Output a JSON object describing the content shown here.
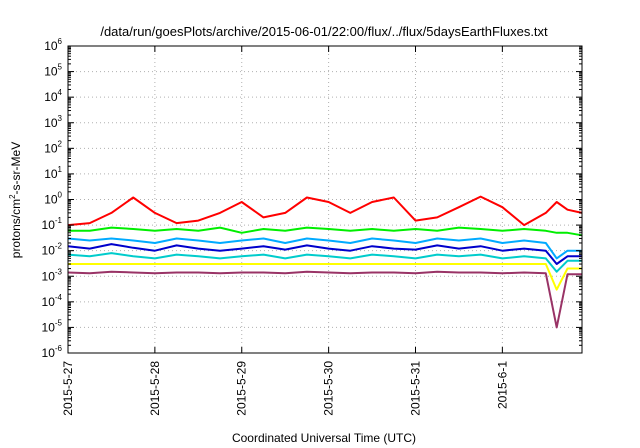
{
  "chart_data": {
    "type": "line",
    "title": "/data/run/goesPlots/archive/2015-06-01/22:00/flux/../flux/5daysEarthFluxes.txt",
    "xlabel": "Coordinated Universal Time (UTC)",
    "ylabel_main": "protons/cm",
    "ylabel_sup": "2",
    "ylabel_tail": "-s-sr-MeV",
    "y_scale": "log",
    "ylim": [
      1e-06,
      1000000.0
    ],
    "y_ticks": [
      {
        "value": 1e-06,
        "base": "10",
        "exp": "-6"
      },
      {
        "value": 1e-05,
        "base": "10",
        "exp": "-5"
      },
      {
        "value": 0.0001,
        "base": "10",
        "exp": "-4"
      },
      {
        "value": 0.001,
        "base": "10",
        "exp": "-3"
      },
      {
        "value": 0.01,
        "base": "10",
        "exp": "-2"
      },
      {
        "value": 0.1,
        "base": "10",
        "exp": "-1"
      },
      {
        "value": 1.0,
        "base": "10",
        "exp": "0"
      },
      {
        "value": 10.0,
        "base": "10",
        "exp": "1"
      },
      {
        "value": 100.0,
        "base": "10",
        "exp": "2"
      },
      {
        "value": 1000.0,
        "base": "10",
        "exp": "3"
      },
      {
        "value": 10000.0,
        "base": "10",
        "exp": "4"
      },
      {
        "value": 100000.0,
        "base": "10",
        "exp": "5"
      },
      {
        "value": 1000000.0,
        "base": "10",
        "exp": "6"
      }
    ],
    "xlim": [
      "2015-05-27 00:00",
      "2015-06-01 22:00"
    ],
    "x_ticks": [
      {
        "value": "2015-05-27 00:00",
        "label": "2015-5-27"
      },
      {
        "value": "2015-05-28 00:00",
        "label": "2015-5-28"
      },
      {
        "value": "2015-05-29 00:00",
        "label": "2015-5-29"
      },
      {
        "value": "2015-05-30 00:00",
        "label": "2015-5-30"
      },
      {
        "value": "2015-05-31 00:00",
        "label": "2015-5-31"
      },
      {
        "value": "2015-06-01 00:00",
        "label": "2015-6-1"
      }
    ],
    "grid": true,
    "legend": "none",
    "x": [
      "2015-05-27 00:00",
      "2015-05-27 06:00",
      "2015-05-27 12:00",
      "2015-05-27 18:00",
      "2015-05-28 00:00",
      "2015-05-28 06:00",
      "2015-05-28 12:00",
      "2015-05-28 18:00",
      "2015-05-29 00:00",
      "2015-05-29 06:00",
      "2015-05-29 12:00",
      "2015-05-29 18:00",
      "2015-05-30 00:00",
      "2015-05-30 06:00",
      "2015-05-30 12:00",
      "2015-05-30 18:00",
      "2015-05-31 00:00",
      "2015-05-31 06:00",
      "2015-05-31 12:00",
      "2015-05-31 18:00",
      "2015-06-01 00:00",
      "2015-06-01 06:00",
      "2015-06-01 12:00",
      "2015-06-01 15:00",
      "2015-06-01 18:00",
      "2015-06-01 22:00"
    ],
    "series": [
      {
        "color": "#ff0000",
        "values": [
          0.1,
          0.12,
          0.3,
          1.2,
          0.3,
          0.12,
          0.15,
          0.3,
          0.8,
          0.2,
          0.3,
          1.2,
          0.8,
          0.3,
          0.8,
          1.2,
          0.15,
          0.2,
          0.5,
          1.3,
          0.5,
          0.1,
          0.3,
          0.8,
          0.4,
          0.3
        ]
      },
      {
        "color": "#00ee00",
        "values": [
          0.06,
          0.06,
          0.08,
          0.07,
          0.06,
          0.07,
          0.06,
          0.08,
          0.05,
          0.07,
          0.06,
          0.08,
          0.07,
          0.06,
          0.07,
          0.06,
          0.07,
          0.06,
          0.08,
          0.07,
          0.06,
          0.07,
          0.06,
          0.05,
          0.05,
          0.04
        ]
      },
      {
        "color": "#00aaff",
        "values": [
          0.03,
          0.025,
          0.03,
          0.025,
          0.02,
          0.03,
          0.025,
          0.02,
          0.025,
          0.03,
          0.02,
          0.03,
          0.025,
          0.02,
          0.03,
          0.025,
          0.02,
          0.03,
          0.025,
          0.03,
          0.02,
          0.025,
          0.02,
          0.005,
          0.01,
          0.01
        ]
      },
      {
        "color": "#0000cc",
        "values": [
          0.015,
          0.012,
          0.018,
          0.013,
          0.01,
          0.016,
          0.012,
          0.01,
          0.012,
          0.015,
          0.011,
          0.016,
          0.012,
          0.01,
          0.015,
          0.012,
          0.011,
          0.016,
          0.012,
          0.015,
          0.01,
          0.012,
          0.01,
          0.003,
          0.006,
          0.006
        ]
      },
      {
        "color": "#00cccc",
        "values": [
          0.007,
          0.006,
          0.008,
          0.006,
          0.005,
          0.007,
          0.006,
          0.005,
          0.006,
          0.007,
          0.005,
          0.007,
          0.006,
          0.005,
          0.007,
          0.006,
          0.005,
          0.007,
          0.006,
          0.007,
          0.005,
          0.006,
          0.005,
          0.0015,
          0.004,
          0.004
        ]
      },
      {
        "color": "#ffff00",
        "values": [
          0.003,
          0.003,
          0.003,
          0.003,
          0.003,
          0.003,
          0.003,
          0.003,
          0.003,
          0.003,
          0.003,
          0.003,
          0.003,
          0.003,
          0.003,
          0.003,
          0.003,
          0.003,
          0.003,
          0.003,
          0.003,
          0.003,
          0.003,
          0.0003,
          0.002,
          0.002
        ]
      },
      {
        "color": "#993366",
        "values": [
          0.0014,
          0.0013,
          0.0015,
          0.0014,
          0.0013,
          0.0014,
          0.0014,
          0.0013,
          0.0014,
          0.0014,
          0.0013,
          0.0015,
          0.0014,
          0.0013,
          0.0014,
          0.0014,
          0.0013,
          0.0015,
          0.0014,
          0.0014,
          0.0013,
          0.0014,
          0.0013,
          1e-05,
          0.0012,
          0.0012
        ]
      }
    ]
  }
}
